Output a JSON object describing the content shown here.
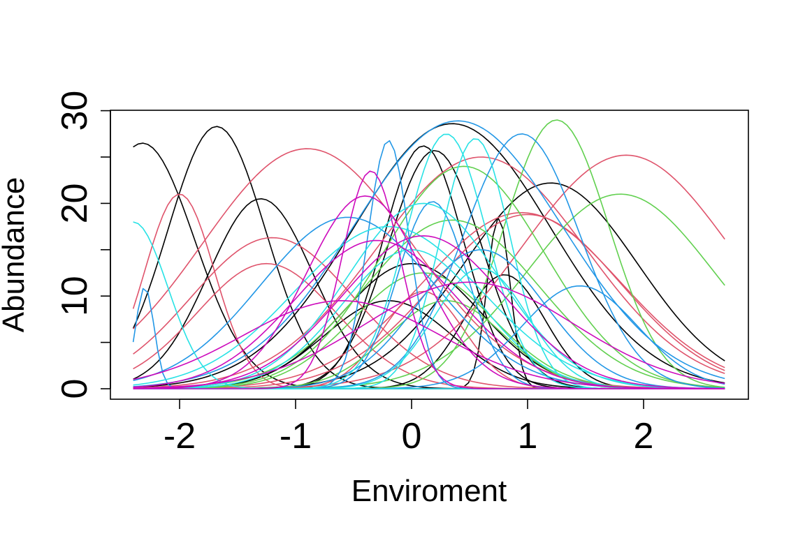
{
  "chart_data": {
    "type": "line",
    "title": "",
    "xlabel": "Enviroment",
    "ylabel": "Abundance",
    "xlim": [
      -2.4,
      2.7
    ],
    "ylim": [
      0,
      30
    ],
    "x_ticks": [
      -2,
      -1,
      0,
      1,
      2
    ],
    "x_tick_labels": [
      "-2",
      "-1",
      "0",
      "1",
      "2"
    ],
    "y_ticks": [
      0,
      5,
      10,
      15,
      20,
      25,
      30
    ],
    "y_tick_labels": [
      "0",
      "",
      "10",
      "",
      "20",
      "",
      "30"
    ],
    "grid": false,
    "legend": "none",
    "x_samples": [
      -2.4,
      2.7
    ],
    "palette": [
      "#000000",
      "#DF536B",
      "#61D04F",
      "#2297E6",
      "#28E2E5",
      "#CD0BBC"
    ],
    "series": [
      {
        "color": "#000000",
        "peak": 26.5,
        "center": -2.32,
        "sd": 0.45
      },
      {
        "color": "#000000",
        "peak": 28.3,
        "center": -1.68,
        "sd": 0.42
      },
      {
        "color": "#000000",
        "peak": 20.5,
        "center": -1.3,
        "sd": 0.45
      },
      {
        "color": "#000000",
        "peak": 28.6,
        "center": 0.35,
        "sd": 0.85
      },
      {
        "color": "#000000",
        "peak": 26.2,
        "center": 0.1,
        "sd": 0.35
      },
      {
        "color": "#000000",
        "peak": 25.7,
        "center": 0.2,
        "sd": 0.4
      },
      {
        "color": "#000000",
        "peak": 22.2,
        "center": 1.2,
        "sd": 0.75
      },
      {
        "color": "#000000",
        "peak": 12.3,
        "center": 0.8,
        "sd": 0.35
      },
      {
        "color": "#000000",
        "peak": 18.5,
        "center": 0.75,
        "sd": 0.1
      },
      {
        "color": "#000000",
        "peak": 13.5,
        "center": 0.0,
        "sd": 0.6
      },
      {
        "color": "#000000",
        "peak": 9.5,
        "center": -0.2,
        "sd": 0.55
      },
      {
        "color": "#DF536B",
        "peak": 21.0,
        "center": -2.0,
        "sd": 0.3
      },
      {
        "color": "#DF536B",
        "peak": 25.9,
        "center": -0.9,
        "sd": 0.9
      },
      {
        "color": "#DF536B",
        "peak": 16.3,
        "center": -1.2,
        "sd": 0.7
      },
      {
        "color": "#DF536B",
        "peak": 13.5,
        "center": -1.25,
        "sd": 0.6
      },
      {
        "color": "#DF536B",
        "peak": 25.0,
        "center": 0.6,
        "sd": 0.9
      },
      {
        "color": "#DF536B",
        "peak": 25.2,
        "center": 1.85,
        "sd": 0.9
      },
      {
        "color": "#DF536B",
        "peak": 19.0,
        "center": 0.95,
        "sd": 0.85
      },
      {
        "color": "#DF536B",
        "peak": 18.8,
        "center": 1.0,
        "sd": 0.8
      },
      {
        "color": "#DF536B",
        "peak": 10.5,
        "center": 0.1,
        "sd": 0.35
      },
      {
        "color": "#61D04F",
        "peak": 29.0,
        "center": 1.25,
        "sd": 0.45
      },
      {
        "color": "#61D04F",
        "peak": 21.0,
        "center": 1.8,
        "sd": 0.8
      },
      {
        "color": "#61D04F",
        "peak": 24.0,
        "center": 0.45,
        "sd": 0.7
      },
      {
        "color": "#61D04F",
        "peak": 18.2,
        "center": 0.35,
        "sd": 0.75
      },
      {
        "color": "#61D04F",
        "peak": 12.5,
        "center": 0.1,
        "sd": 0.6
      },
      {
        "color": "#61D04F",
        "peak": 9.5,
        "center": 0.3,
        "sd": 0.5
      },
      {
        "color": "#2297E6",
        "peak": 11.0,
        "center": -2.3,
        "sd": 0.08
      },
      {
        "color": "#2297E6",
        "peak": 28.9,
        "center": 0.4,
        "sd": 0.9
      },
      {
        "color": "#2297E6",
        "peak": 27.5,
        "center": 0.95,
        "sd": 0.5
      },
      {
        "color": "#2297E6",
        "peak": 26.8,
        "center": -0.2,
        "sd": 0.18
      },
      {
        "color": "#2297E6",
        "peak": 20.2,
        "center": 0.18,
        "sd": 0.3
      },
      {
        "color": "#2297E6",
        "peak": 11.1,
        "center": 1.45,
        "sd": 0.5
      },
      {
        "color": "#2297E6",
        "peak": 18.5,
        "center": -0.55,
        "sd": 0.75
      },
      {
        "color": "#2297E6",
        "peak": 15.0,
        "center": 0.6,
        "sd": 0.55
      },
      {
        "color": "#28E2E5",
        "peak": 27.5,
        "center": 0.3,
        "sd": 0.35
      },
      {
        "color": "#28E2E5",
        "peak": 27.0,
        "center": 0.55,
        "sd": 0.3
      },
      {
        "color": "#28E2E5",
        "peak": 20.0,
        "center": 0.1,
        "sd": 0.65
      },
      {
        "color": "#28E2E5",
        "peak": 17.5,
        "center": -0.2,
        "sd": 0.8
      },
      {
        "color": "#28E2E5",
        "peak": 15.0,
        "center": 0.0,
        "sd": 0.6
      },
      {
        "color": "#28E2E5",
        "peak": 18.0,
        "center": -2.4,
        "sd": 0.3
      },
      {
        "color": "#28E2E5",
        "peak": 13.0,
        "center": 0.6,
        "sd": 0.4
      },
      {
        "color": "#CD0BBC",
        "peak": 23.5,
        "center": -0.35,
        "sd": 0.25
      },
      {
        "color": "#CD0BBC",
        "peak": 20.8,
        "center": -0.4,
        "sd": 0.5
      },
      {
        "color": "#CD0BBC",
        "peak": 16.0,
        "center": -0.3,
        "sd": 0.7
      },
      {
        "color": "#CD0BBC",
        "peak": 16.5,
        "center": 0.1,
        "sd": 0.7
      },
      {
        "color": "#CD0BBC",
        "peak": 11.5,
        "center": 0.5,
        "sd": 0.9
      },
      {
        "color": "#CD0BBC",
        "peak": 9.5,
        "center": -0.6,
        "sd": 0.85
      }
    ]
  }
}
